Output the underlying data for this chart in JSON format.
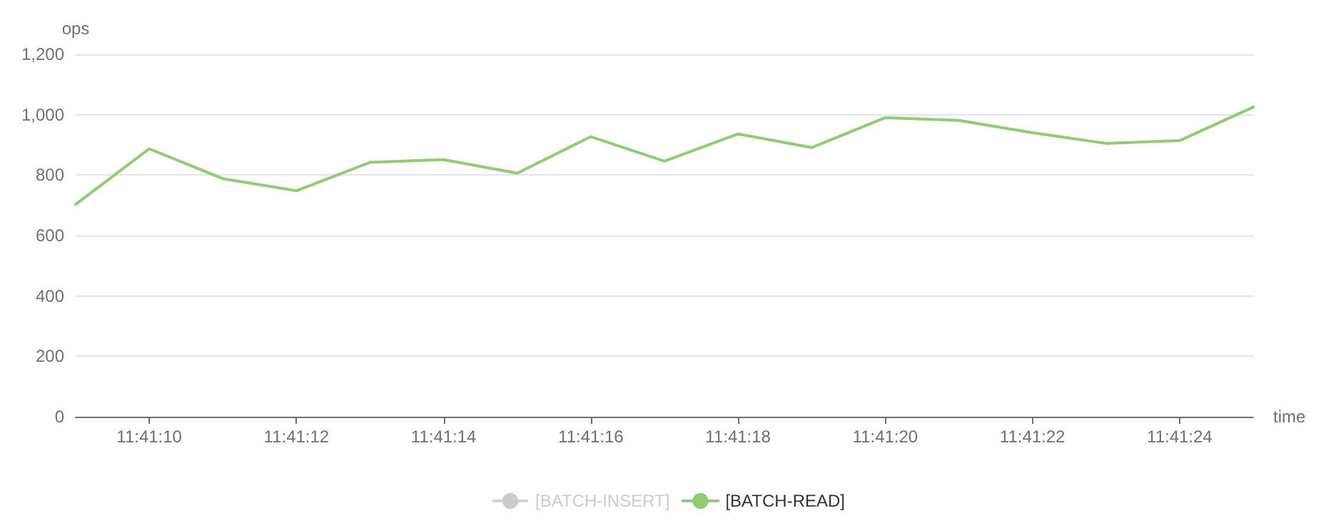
{
  "chart_data": {
    "type": "line",
    "xlabel": "time",
    "ylabel": "ops",
    "categories": [
      null,
      "11:41:10",
      null,
      "11:41:12",
      null,
      "11:41:14",
      null,
      "11:41:16",
      null,
      "11:41:18",
      null,
      "11:41:20",
      null,
      "11:41:22",
      null,
      "11:41:24",
      null
    ],
    "series": [
      {
        "name": "[BATCH-INSERT]",
        "color": "#cccccc",
        "values": [
          null,
          null,
          null,
          null,
          null,
          null,
          null,
          null,
          null,
          null,
          null,
          null,
          null,
          null,
          null,
          null,
          null
        ]
      },
      {
        "name": "[BATCH-READ]",
        "color": "#91cc75",
        "values": [
          703,
          887,
          788,
          748,
          842,
          851,
          806,
          927,
          846,
          936,
          891,
          990,
          981,
          940,
          905,
          914,
          1025
        ]
      }
    ],
    "ylim": [
      0,
      1200
    ],
    "yticks": [
      0,
      200,
      400,
      600,
      800,
      {
        "value": 1000,
        "label": "1,000"
      },
      {
        "value": 1200,
        "label": "1,200"
      }
    ],
    "grid": "y",
    "legend": "bottom",
    "marker": "none",
    "line_style": "solid"
  }
}
